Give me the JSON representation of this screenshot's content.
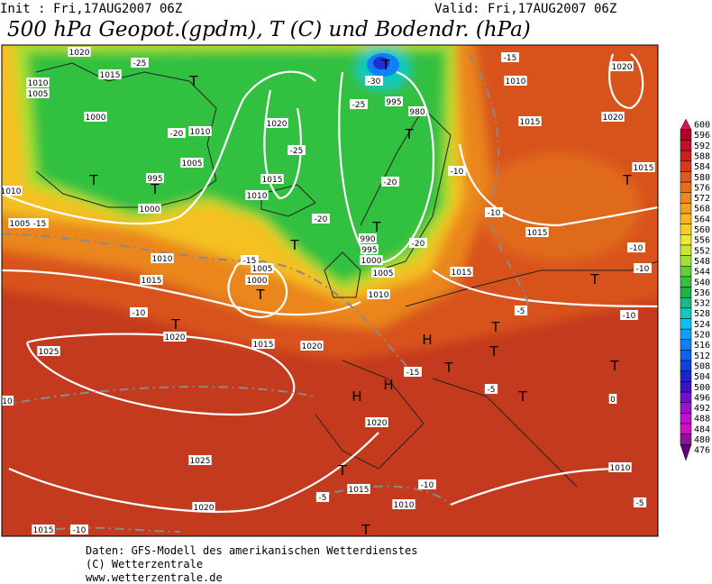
{
  "header": {
    "init": "Init : Fri,17AUG2007 06Z",
    "valid": "Valid: Fri,17AUG2007 06Z",
    "title": "500 hPa Geopot.(gpdm), T (C) und Bodendr. (hPa)"
  },
  "legend": {
    "levels": [
      600,
      596,
      592,
      588,
      584,
      580,
      576,
      572,
      568,
      564,
      560,
      556,
      552,
      548,
      544,
      540,
      536,
      532,
      528,
      524,
      520,
      516,
      512,
      508,
      504,
      500,
      496,
      492,
      488,
      484,
      480,
      476
    ],
    "colors": [
      "#e0105a",
      "#b0002a",
      "#c0102a",
      "#cc2020",
      "#d43a1e",
      "#dc5a1e",
      "#e4701e",
      "#ec8a1e",
      "#f2a020",
      "#f6b822",
      "#f8d024",
      "#f0e830",
      "#c8e830",
      "#a0e030",
      "#60d038",
      "#38c040",
      "#20b048",
      "#18b888",
      "#10c8c0",
      "#10c0f0",
      "#10a0f8",
      "#1080f8",
      "#1060f0",
      "#1040e0",
      "#2020d0",
      "#4010c8",
      "#7010d0",
      "#a010d0",
      "#c010d0",
      "#d010c0",
      "#9010a0",
      "#600080"
    ]
  },
  "map": {
    "labels": [
      "1020",
      "1015",
      "-25",
      "1010",
      "1005",
      "1000",
      "-20",
      "1010",
      "1005",
      "T",
      "995",
      "T",
      "1000",
      "1005",
      "-15",
      "1010",
      "1020",
      "-25",
      "1015",
      "1010",
      "-20",
      "T",
      "T",
      "-25",
      "995",
      "-30",
      "T",
      "980",
      "T",
      "-20",
      "T",
      "990",
      "995",
      "1000",
      "-20",
      "1005",
      "1010",
      "1015",
      "-15",
      "1010",
      "1020",
      "1020",
      "1015",
      "-10",
      "-10",
      "1015",
      "T",
      "-10",
      "-10",
      "T",
      "1015",
      "-10",
      "T",
      "-5",
      "T",
      "1005",
      "1000",
      "T",
      "-15",
      "1010",
      "1015",
      "-10",
      "T",
      "1020",
      "1015",
      "1020",
      "H",
      "T",
      "-15",
      "H",
      "H",
      "-5",
      "T",
      "T",
      "0",
      "1025",
      "1020",
      "1025",
      "10",
      "T",
      "1015",
      "-5",
      "-10",
      "1010",
      "1020",
      "T",
      "1015",
      "-10",
      "1010",
      "-5"
    ]
  },
  "footer": {
    "lines": [
      "Daten: GFS-Modell des amerikanischen Wetterdienstes",
      "(C) Wetterzentrale",
      "www.wetterzentrale.de"
    ]
  }
}
